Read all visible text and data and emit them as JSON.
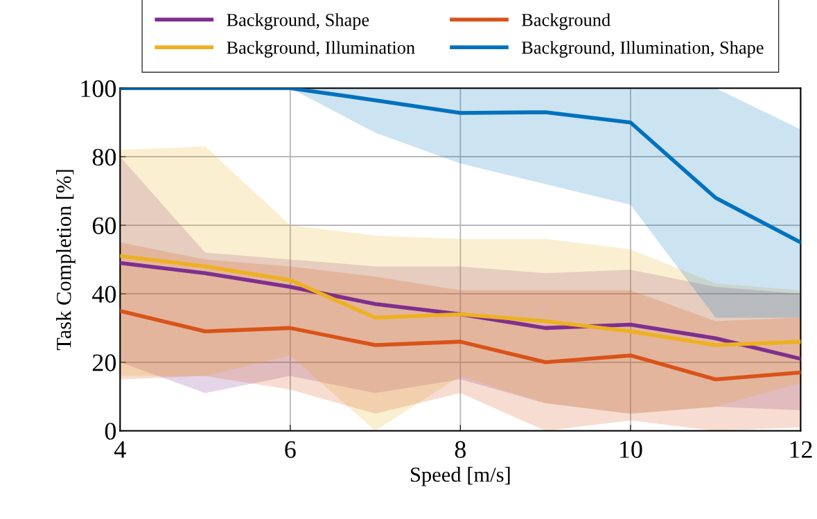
{
  "chart_data": {
    "type": "line",
    "xlabel": "Speed [m/s]",
    "ylabel": "Task Completion [%]",
    "x": [
      4,
      5,
      6,
      7,
      8,
      9,
      10,
      11,
      12
    ],
    "xlim": [
      4,
      12
    ],
    "xticks": [
      4,
      6,
      8,
      10,
      12
    ],
    "ylim": [
      0,
      100
    ],
    "yticks": [
      0,
      20,
      40,
      60,
      80,
      100
    ],
    "grid": true,
    "legend": "top",
    "marker": "none",
    "line_style": "solid",
    "series": [
      {
        "name": "Background, Shape",
        "color": "#7e2f8e",
        "values": [
          49,
          46,
          42,
          37,
          34,
          30,
          31,
          27,
          21
        ],
        "lower": [
          20,
          11,
          16,
          11,
          15,
          8,
          5,
          7,
          6
        ],
        "upper": [
          80,
          52,
          50,
          48,
          48,
          46,
          47,
          42,
          40
        ]
      },
      {
        "name": "Background, Illumination",
        "color": "#edb120",
        "values": [
          51,
          48,
          44,
          33,
          34,
          32,
          29,
          25,
          26
        ],
        "lower": [
          16,
          16,
          22,
          0,
          16,
          8,
          5,
          7,
          14
        ],
        "upper": [
          82,
          83,
          60,
          57,
          56,
          56,
          53,
          43,
          41
        ]
      },
      {
        "name": "Background",
        "color": "#d95319",
        "values": [
          35,
          29,
          30,
          25,
          26,
          20,
          22,
          15,
          17
        ],
        "lower": [
          15,
          16,
          12,
          5,
          11,
          0,
          3,
          0,
          1
        ],
        "upper": [
          55,
          50,
          48,
          45,
          41,
          41,
          41,
          32,
          33
        ]
      },
      {
        "name": "Background, Illumination, Shape",
        "color": "#0072bd",
        "values": [
          100,
          100,
          100,
          96.5,
          92.8,
          93,
          90,
          68,
          55
        ],
        "lower": [
          100,
          100,
          100,
          87,
          78,
          72,
          66,
          33,
          33
        ],
        "upper": [
          100,
          100,
          100,
          100,
          100,
          100,
          100,
          100,
          88
        ]
      }
    ]
  }
}
